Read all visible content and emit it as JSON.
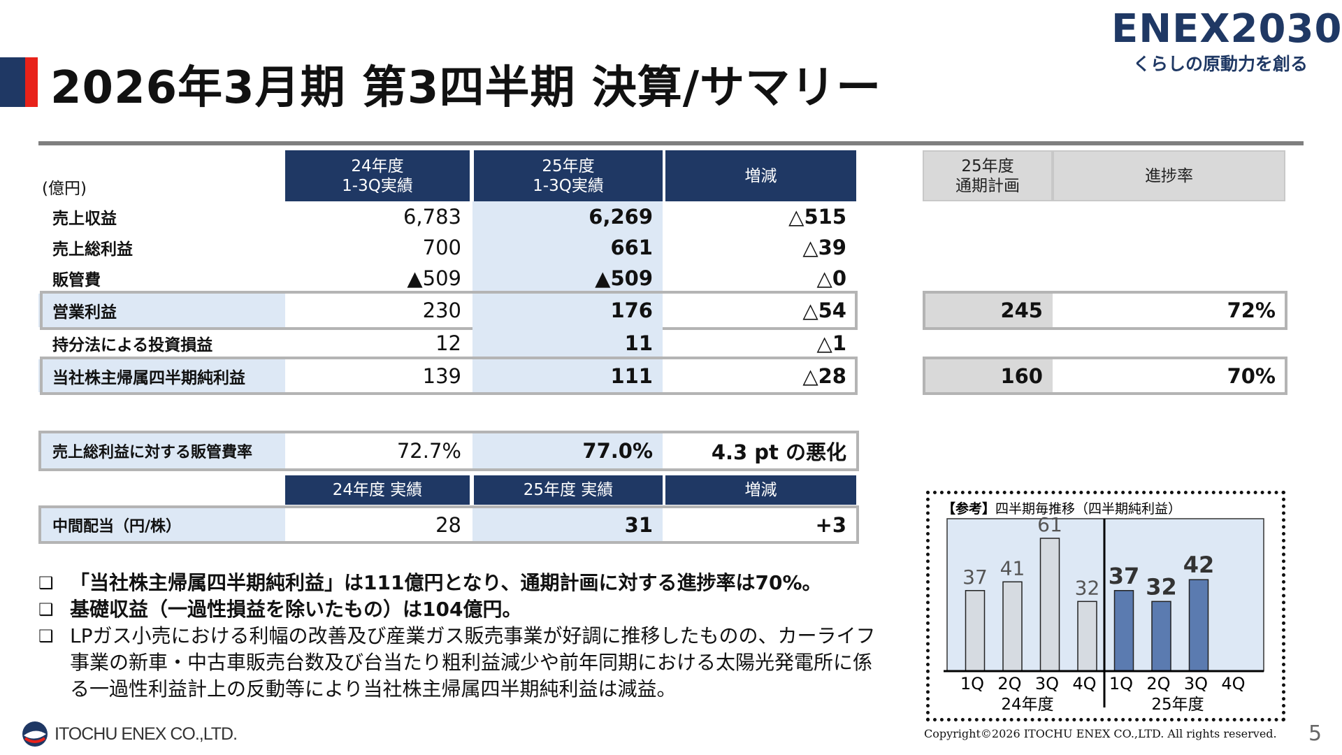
{
  "title": "2026年3月期 第3四半期 決算/サマリー",
  "logo": {
    "name": "ENEX2030",
    "tagline": "くらしの原動力を創る"
  },
  "table": {
    "unit": "(億円)",
    "headers": [
      "24年度\n1-3Q実績",
      "25年度\n1-3Q実績",
      "増減"
    ],
    "rows": [
      {
        "label": "売上収益",
        "v24": "6,783",
        "v25": "6,269",
        "diff": "△515"
      },
      {
        "label": "売上総利益",
        "v24": "700",
        "v25": "661",
        "diff": "△39"
      },
      {
        "label": "販管費",
        "v24": "▲509",
        "v25": "▲509",
        "diff": "△0"
      },
      {
        "label": "営業利益",
        "v24": "230",
        "v25": "176",
        "diff": "△54"
      },
      {
        "label": "持分法による投資損益",
        "v24": "12",
        "v25": "11",
        "diff": "△1"
      },
      {
        "label": "当社株主帰属四半期純利益",
        "v24": "139",
        "v25": "111",
        "diff": "△28"
      }
    ]
  },
  "plan": {
    "headers": [
      "25年度\n通期計画",
      "進捗率"
    ],
    "rows": [
      {
        "plan": "245",
        "progress": "72%"
      },
      {
        "plan": "160",
        "progress": "70%"
      }
    ]
  },
  "ratio": {
    "label": "売上総利益に対する販管費率",
    "v24": "72.7%",
    "v25": "77.0%",
    "diff": "4.3 pt の悪化"
  },
  "dividend": {
    "headers": [
      "24年度 実績",
      "25年度 実績",
      "増減"
    ],
    "label": "中間配当（円/株）",
    "v24": "28",
    "v25": "31",
    "diff": "+3"
  },
  "bullets": [
    {
      "marker": "❑",
      "text": "「当社株主帰属四半期純利益」は111億円となり、通期計画に対する進捗率は70%。",
      "bold": true
    },
    {
      "marker": "❑",
      "text": "基礎収益（一過性損益を除いたもの）は104億円。",
      "bold": true
    },
    {
      "marker": "❑",
      "text": "LPガス小売における利幅の改善及び産業ガス販売事業が好調に推移したものの、カーライフ事業の新車・中古車販売台数及び台当たり粗利益減少や前年同期における太陽光発電所に係る一過性利益計上の反動等により当社株主帰属四半期純利益は減益。",
      "bold": false
    }
  ],
  "chart_data": {
    "type": "bar",
    "title_prefix": "【参考】",
    "title": "四半期毎推移（四半期純利益）",
    "categories": [
      "1Q",
      "2Q",
      "3Q",
      "4Q"
    ],
    "series": [
      {
        "name": "24年度",
        "values": [
          37,
          41,
          61,
          32
        ],
        "color": "#d6dbe1"
      },
      {
        "name": "25年度",
        "values": [
          37,
          32,
          42,
          null
        ],
        "color": "#5b7bb0"
      }
    ],
    "ylim": [
      0,
      70
    ],
    "background": "#dde8f5"
  },
  "footer": {
    "company": "ITOCHU ENEX CO.,LTD.",
    "copyright": "Copyright©2026 ITOCHU ENEX CO.,LTD. All rights reserved.",
    "page": "5"
  }
}
